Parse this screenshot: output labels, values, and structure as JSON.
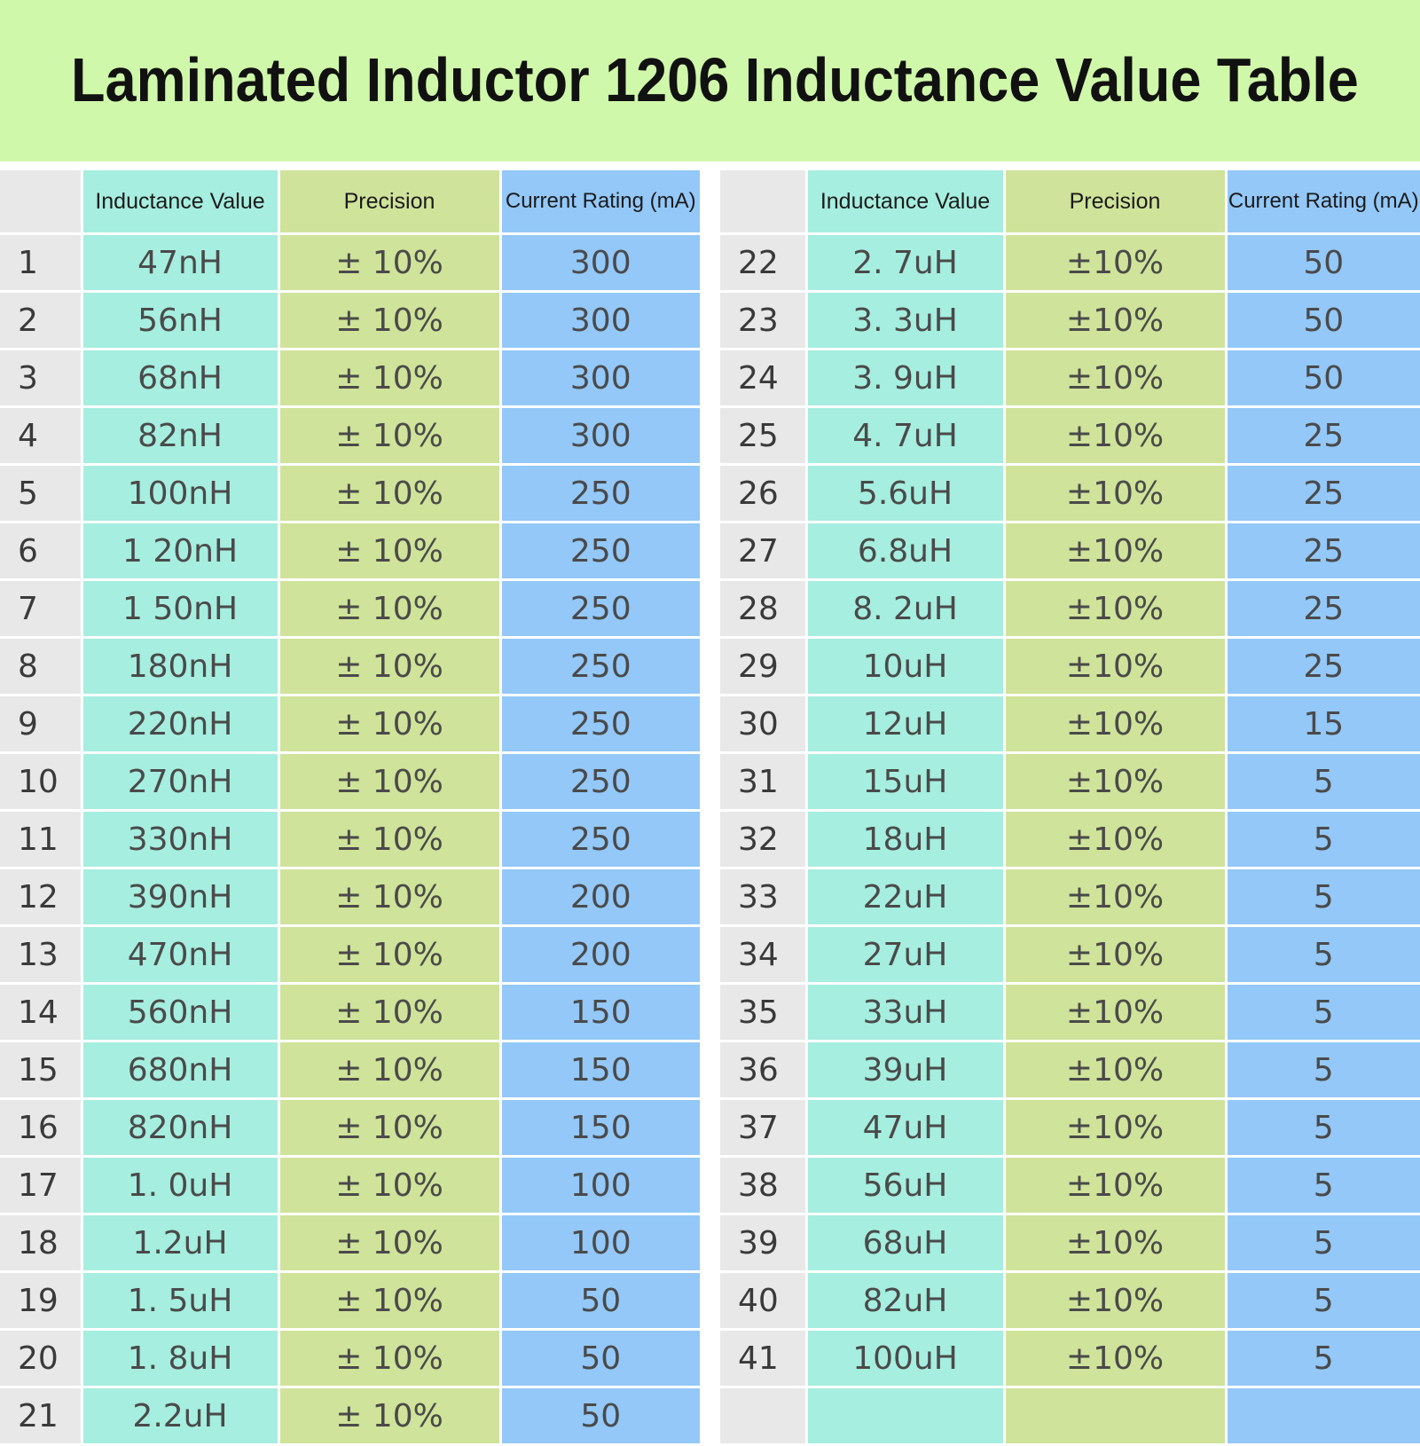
{
  "title": "Laminated Inductor 1206 Inductance Value Table",
  "colors": {
    "banner": "#d0f8aa",
    "number_column": "#e8e8e8",
    "inductance_column": "#a6eedf",
    "precision_column": "#cfe39a",
    "current_column": "#93c8f8"
  },
  "headers": {
    "inductance": "Inductance Value",
    "precision": "Precision",
    "current": "Current Rating (mA)"
  },
  "left_rows": [
    {
      "no": "1",
      "inductance": "47nH",
      "precision": "± 10%",
      "current": "300"
    },
    {
      "no": "2",
      "inductance": "56nH",
      "precision": "± 10%",
      "current": "300"
    },
    {
      "no": "3",
      "inductance": "68nH",
      "precision": "± 10%",
      "current": "300"
    },
    {
      "no": "4",
      "inductance": "82nH",
      "precision": "± 10%",
      "current": "300"
    },
    {
      "no": "5",
      "inductance": "100nH",
      "precision": "± 10%",
      "current": "250"
    },
    {
      "no": "6",
      "inductance": "1 20nH",
      "precision": "± 10%",
      "current": "250"
    },
    {
      "no": "7",
      "inductance": "1 50nH",
      "precision": "± 10%",
      "current": "250"
    },
    {
      "no": "8",
      "inductance": "180nH",
      "precision": "± 10%",
      "current": "250"
    },
    {
      "no": "9",
      "inductance": "220nH",
      "precision": "± 10%",
      "current": "250"
    },
    {
      "no": "10",
      "inductance": "270nH",
      "precision": "± 10%",
      "current": "250"
    },
    {
      "no": "11",
      "inductance": "330nH",
      "precision": "± 10%",
      "current": "250"
    },
    {
      "no": "12",
      "inductance": "390nH",
      "precision": "± 10%",
      "current": "200"
    },
    {
      "no": "13",
      "inductance": "470nH",
      "precision": "± 10%",
      "current": "200"
    },
    {
      "no": "14",
      "inductance": "560nH",
      "precision": "± 10%",
      "current": "150"
    },
    {
      "no": "15",
      "inductance": "680nH",
      "precision": "± 10%",
      "current": "150"
    },
    {
      "no": "16",
      "inductance": "820nH",
      "precision": "± 10%",
      "current": "150"
    },
    {
      "no": "17",
      "inductance": "1. 0uH",
      "precision": "± 10%",
      "current": "100"
    },
    {
      "no": "18",
      "inductance": "1.2uH",
      "precision": "± 10%",
      "current": "100"
    },
    {
      "no": "19",
      "inductance": "1. 5uH",
      "precision": "± 10%",
      "current": "50"
    },
    {
      "no": "20",
      "inductance": "1. 8uH",
      "precision": "± 10%",
      "current": "50"
    },
    {
      "no": "21",
      "inductance": "2.2uH",
      "precision": "± 10%",
      "current": "50"
    }
  ],
  "right_rows": [
    {
      "no": "22",
      "inductance": "2. 7uH",
      "precision": "±10%",
      "current": "50"
    },
    {
      "no": "23",
      "inductance": "3. 3uH",
      "precision": "±10%",
      "current": "50"
    },
    {
      "no": "24",
      "inductance": "3. 9uH",
      "precision": "±10%",
      "current": "50"
    },
    {
      "no": "25",
      "inductance": "4. 7uH",
      "precision": "±10%",
      "current": "25"
    },
    {
      "no": "26",
      "inductance": "5.6uH",
      "precision": "±10%",
      "current": "25"
    },
    {
      "no": "27",
      "inductance": "6.8uH",
      "precision": "±10%",
      "current": "25"
    },
    {
      "no": "28",
      "inductance": "8. 2uH",
      "precision": "±10%",
      "current": "25"
    },
    {
      "no": "29",
      "inductance": "10uH",
      "precision": "±10%",
      "current": "25"
    },
    {
      "no": "30",
      "inductance": "12uH",
      "precision": "±10%",
      "current": "15"
    },
    {
      "no": "31",
      "inductance": "15uH",
      "precision": "±10%",
      "current": "5"
    },
    {
      "no": "32",
      "inductance": "18uH",
      "precision": "±10%",
      "current": "5"
    },
    {
      "no": "33",
      "inductance": "22uH",
      "precision": "±10%",
      "current": "5"
    },
    {
      "no": "34",
      "inductance": "27uH",
      "precision": "±10%",
      "current": "5"
    },
    {
      "no": "35",
      "inductance": "33uH",
      "precision": "±10%",
      "current": "5"
    },
    {
      "no": "36",
      "inductance": "39uH",
      "precision": "±10%",
      "current": "5"
    },
    {
      "no": "37",
      "inductance": "47uH",
      "precision": "±10%",
      "current": "5"
    },
    {
      "no": "38",
      "inductance": "56uH",
      "precision": "±10%",
      "current": "5"
    },
    {
      "no": "39",
      "inductance": "68uH",
      "precision": "±10%",
      "current": "5"
    },
    {
      "no": "40",
      "inductance": "82uH",
      "precision": "±10%",
      "current": "5"
    },
    {
      "no": "41",
      "inductance": "100uH",
      "precision": "±10%",
      "current": "5"
    },
    {
      "no": "",
      "inductance": "",
      "precision": "",
      "current": ""
    }
  ]
}
